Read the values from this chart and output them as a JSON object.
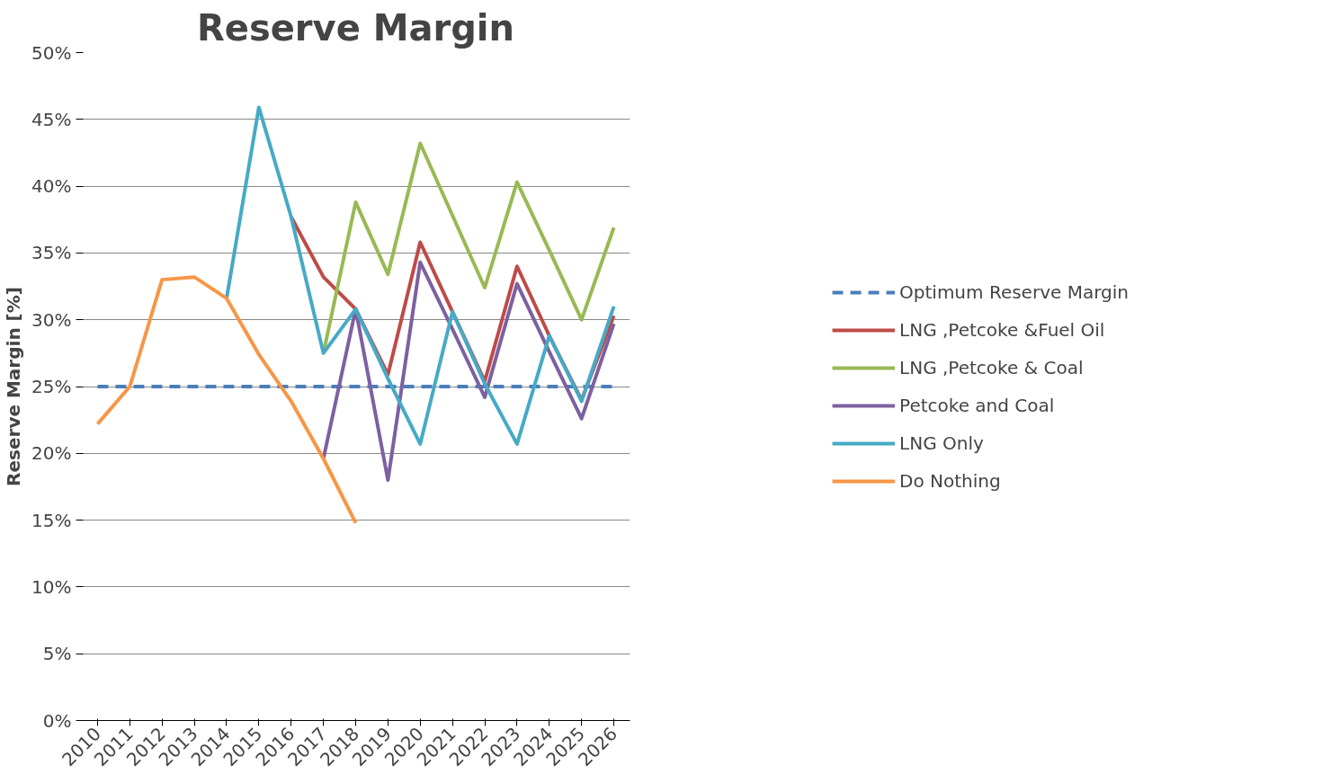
{
  "chart_data": {
    "type": "line",
    "title": "Reserve Margin",
    "ylabel": "Reserve Margin [%]",
    "categories": [
      "2010",
      "2011",
      "2012",
      "2013",
      "2014",
      "2015",
      "2016",
      "2017",
      "2018",
      "2019",
      "2020",
      "2021",
      "2022",
      "2023",
      "2024",
      "2025",
      "2026"
    ],
    "ylim": [
      0,
      50
    ],
    "yticks": [
      {
        "value": 0,
        "label": "0%"
      },
      {
        "value": 5,
        "label": "5%"
      },
      {
        "value": 10,
        "label": "10%"
      },
      {
        "value": 15,
        "label": "15%"
      },
      {
        "value": 20,
        "label": "20%"
      },
      {
        "value": 25,
        "label": "25%"
      },
      {
        "value": 30,
        "label": "30%"
      },
      {
        "value": 35,
        "label": "35%"
      },
      {
        "value": 40,
        "label": "40%"
      },
      {
        "value": 45,
        "label": "45%"
      },
      {
        "value": 50,
        "label": "50%"
      }
    ],
    "grid": "y",
    "legend": "right",
    "marker": "none",
    "series": [
      {
        "name": "Optimum Reserve Margin",
        "color": "#4a7ebb",
        "line_style": "dashed",
        "values": [
          25,
          25,
          25,
          25,
          25,
          25,
          25,
          25,
          25,
          25,
          25,
          25,
          25,
          25,
          25,
          25,
          25
        ]
      },
      {
        "name": "LNG ,Petcoke &Fuel Oil",
        "color": "#be4b48",
        "values": [
          null,
          null,
          null,
          null,
          null,
          null,
          37.7,
          33.2,
          30.8,
          25.9,
          35.8,
          30.6,
          25.4,
          34.0,
          28.8,
          24.0,
          30.3
        ]
      },
      {
        "name": "LNG ,Petcoke & Coal",
        "color": "#98b954",
        "values": [
          null,
          null,
          null,
          null,
          null,
          null,
          null,
          27.5,
          38.8,
          33.4,
          43.2,
          37.8,
          32.4,
          40.3,
          35.2,
          30.0,
          36.9
        ]
      },
      {
        "name": "Petcoke and Coal",
        "color": "#7d60a0",
        "values": [
          null,
          null,
          null,
          null,
          null,
          null,
          null,
          19.6,
          30.8,
          18.0,
          34.3,
          29.3,
          24.2,
          32.7,
          27.6,
          22.6,
          29.7
        ]
      },
      {
        "name": "LNG Only",
        "color": "#46aac5",
        "values": [
          null,
          null,
          null,
          null,
          31.6,
          45.9,
          37.7,
          27.5,
          30.8,
          25.6,
          20.7,
          30.6,
          25.2,
          20.7,
          28.8,
          23.9,
          31.0
        ]
      },
      {
        "name": "Do Nothing",
        "color": "#f79646",
        "values": [
          22.2,
          25.0,
          33.0,
          33.2,
          31.6,
          27.4,
          23.9,
          19.6,
          14.8,
          null,
          null,
          null,
          null,
          null,
          null,
          null,
          null
        ]
      }
    ]
  }
}
